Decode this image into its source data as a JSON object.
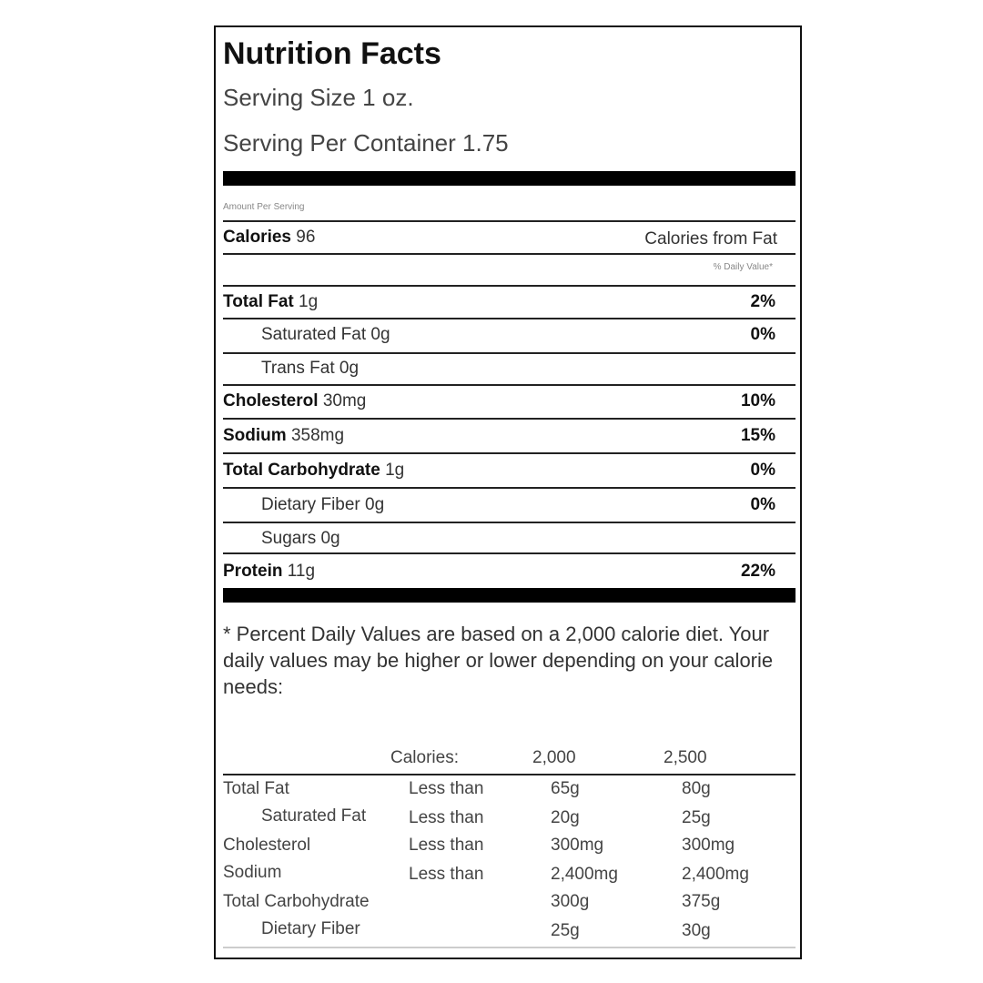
{
  "title": "Nutrition Facts",
  "serving_size": "Serving Size 1 oz.",
  "servings_per_container": "Serving Per Container 1.75",
  "amount_per_serving": "Amount Per Serving",
  "calories_label": "Calories",
  "calories_value": "96",
  "calories_from_fat": "Calories from Fat",
  "daily_value_header": "% Daily Value*",
  "nutrients": [
    {
      "name": "Total Fat",
      "amount": "1g",
      "dv": "2%"
    },
    {
      "name": "Saturated Fat",
      "amount": "0g",
      "dv": "0%"
    },
    {
      "name": "Trans Fat",
      "amount": "0g",
      "dv": ""
    },
    {
      "name": "Cholesterol",
      "amount": "30mg",
      "dv": "10%"
    },
    {
      "name": "Sodium",
      "amount": "358mg",
      "dv": "15%"
    },
    {
      "name": "Total Carbohydrate",
      "amount": "1g",
      "dv": "0%"
    },
    {
      "name": "Dietary Fiber",
      "amount": "0g",
      "dv": "0%"
    },
    {
      "name": "Sugars",
      "amount": "0g",
      "dv": ""
    },
    {
      "name": "Protein",
      "amount": "11g",
      "dv": "22%"
    }
  ],
  "footnote": "* Percent Daily Values are based on a 2,000 calorie diet. Your daily values may be higher or lower depending on your calorie needs:",
  "reference": {
    "header": [
      "Calories:",
      "2,000",
      "2,500"
    ],
    "rows": [
      {
        "name": "Total Fat",
        "qualifier": "Less than",
        "v2000": "65g",
        "v2500": "80g"
      },
      {
        "name": "Saturated Fat",
        "qualifier": "Less than",
        "v2000": "20g",
        "v2500": "25g"
      },
      {
        "name": "Cholesterol",
        "qualifier": "Less than",
        "v2000": "300mg",
        "v2500": "300mg"
      },
      {
        "name": "Sodium",
        "qualifier": "Less than",
        "v2000": "2,400mg",
        "v2500": "2,400mg"
      },
      {
        "name": "Total Carbohydrate",
        "qualifier": "",
        "v2000": "300g",
        "v2500": "375g"
      },
      {
        "name": "Dietary Fiber",
        "qualifier": "",
        "v2000": "25g",
        "v2500": "30g"
      }
    ]
  }
}
